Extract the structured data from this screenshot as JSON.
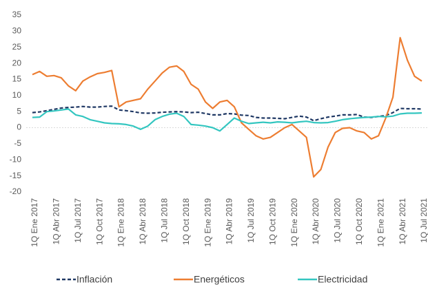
{
  "chart_data": {
    "type": "line",
    "categories": [
      "1Q Ene 2017",
      null,
      null,
      "1Q Abr 2017",
      null,
      null,
      "1Q Jul 2017",
      null,
      null,
      "1Q Oct 2017",
      null,
      null,
      "1Q Ene 2018",
      null,
      null,
      "1Q Abr 2018",
      null,
      null,
      "1Q Jul 2018",
      null,
      null,
      "1Q Oct 2018",
      null,
      null,
      "1Q Ene 2019",
      null,
      null,
      "1Q Abr 2019",
      null,
      null,
      "1Q Jul 2019",
      null,
      null,
      "1Q Oct 2019",
      null,
      null,
      "1Q Ene 2020",
      null,
      null,
      "1Q Abr 2020",
      null,
      null,
      "1Q Jul 2020",
      null,
      null,
      "1Q Oct 2020",
      null,
      null,
      "1Q Ene 2021",
      null,
      null,
      "1Q Abr 2021",
      null,
      null,
      "1Q Jul 2021"
    ],
    "series": [
      {
        "name": "Inflación",
        "color": "#1f3864",
        "dashed": true,
        "values": [
          4.7,
          4.9,
          5.3,
          5.7,
          6.1,
          6.3,
          6.4,
          6.6,
          6.4,
          6.4,
          6.6,
          6.7,
          5.5,
          5.3,
          5.0,
          4.6,
          4.5,
          4.6,
          4.8,
          4.9,
          5.0,
          4.9,
          4.7,
          4.8,
          4.4,
          4.0,
          4.0,
          4.4,
          4.3,
          3.9,
          3.8,
          3.2,
          3.0,
          3.0,
          2.9,
          2.8,
          3.2,
          3.6,
          3.3,
          2.2,
          2.8,
          3.3,
          3.6,
          4.0,
          4.0,
          4.1,
          3.3,
          3.2,
          3.5,
          3.8,
          4.7,
          6.0,
          5.9,
          5.9,
          5.8
        ]
      },
      {
        "name": "Energéticos",
        "color": "#ed7d31",
        "dashed": false,
        "values": [
          16.5,
          17.5,
          16.0,
          16.2,
          15.5,
          13.0,
          11.5,
          14.5,
          15.8,
          16.8,
          17.2,
          17.8,
          6.5,
          8.0,
          8.5,
          9.0,
          12.0,
          14.5,
          17.0,
          18.8,
          19.2,
          17.5,
          13.5,
          12.0,
          8.0,
          6.0,
          8.0,
          8.5,
          6.5,
          1.5,
          -0.5,
          -2.5,
          -3.5,
          -3.0,
          -1.5,
          0.0,
          1.0,
          -1.0,
          -3.0,
          -15.3,
          -13.0,
          -6.0,
          -1.5,
          -0.2,
          0.0,
          -1.0,
          -1.5,
          -3.5,
          -2.5,
          3.0,
          9.5,
          28.0,
          21.0,
          16.0,
          14.5
        ]
      },
      {
        "name": "Electricidad",
        "color": "#33c6c0",
        "dashed": false,
        "values": [
          3.2,
          3.3,
          5.0,
          5.2,
          5.5,
          5.8,
          4.0,
          3.5,
          2.5,
          2.0,
          1.5,
          1.3,
          1.2,
          1.0,
          0.5,
          -0.5,
          0.5,
          2.5,
          3.5,
          4.2,
          4.5,
          3.5,
          1.0,
          0.8,
          0.5,
          0.0,
          -1.0,
          1.0,
          3.0,
          2.0,
          1.3,
          1.5,
          1.7,
          1.5,
          1.8,
          1.7,
          1.5,
          1.8,
          2.0,
          1.6,
          1.5,
          1.6,
          2.0,
          2.5,
          2.8,
          3.0,
          3.2,
          3.3,
          3.5,
          3.4,
          3.6,
          4.3,
          4.5,
          4.5,
          4.6
        ]
      }
    ],
    "ylim": [
      -20,
      35
    ],
    "yticks": [
      -20,
      -15,
      -10,
      -5,
      0,
      5,
      10,
      15,
      20,
      25,
      30,
      35
    ],
    "legend": "bottom"
  }
}
